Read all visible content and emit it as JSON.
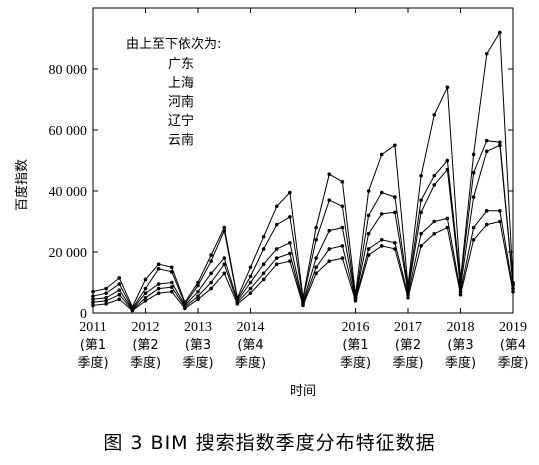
{
  "chart_data": {
    "type": "line",
    "ylabel": "百度指数",
    "xlabel": "时间",
    "ylim": [
      0,
      100000
    ],
    "yticks": [
      0,
      20000,
      40000,
      60000,
      80000
    ],
    "ytick_labels": [
      "0",
      "20 000",
      "40 000",
      "60 000",
      "80 000"
    ],
    "xlim": [
      2011,
      2019
    ],
    "xticks": [
      2011,
      2012,
      2013,
      2014,
      2016,
      2017,
      2018,
      2019
    ],
    "xtick_labels": [
      [
        "2011",
        "(第1",
        "季度)"
      ],
      [
        "2012",
        "(第2",
        "季度)"
      ],
      [
        "2013",
        "(第3",
        "季度)"
      ],
      [
        "2014",
        "(第4",
        "季度)"
      ],
      [
        "2016",
        "(第1",
        "季度)"
      ],
      [
        "2017",
        "(第2",
        "季度)"
      ],
      [
        "2018",
        "(第3",
        "季度)"
      ],
      [
        "2019",
        "(第4",
        "季度)"
      ]
    ],
    "legend_title": "由上至下依次为:",
    "legend_placement": "top-left",
    "x": [
      2011.0,
      2011.25,
      2011.5,
      2011.75,
      2012.0,
      2012.25,
      2012.5,
      2012.75,
      2013.0,
      2013.25,
      2013.5,
      2013.75,
      2014.0,
      2014.25,
      2014.5,
      2014.75,
      2015.0,
      2015.25,
      2015.5,
      2015.75,
      2016.0,
      2016.25,
      2016.5,
      2016.75,
      2017.0,
      2017.25,
      2017.5,
      2017.75,
      2018.0,
      2018.25,
      2018.5,
      2018.75,
      2019.0
    ],
    "series": [
      {
        "name": "广东",
        "values": [
          7000,
          8000,
          11500,
          2000,
          11000,
          16000,
          15000,
          3500,
          10000,
          19000,
          28000,
          5000,
          15000,
          25000,
          35000,
          39500,
          5000,
          28000,
          45500,
          43000,
          6000,
          40000,
          52000,
          55000,
          9000,
          45000,
          65000,
          74000,
          11000,
          52000,
          85000,
          92000,
          10000
        ]
      },
      {
        "name": "上海",
        "values": [
          5500,
          6500,
          9500,
          1500,
          8000,
          14500,
          13500,
          3000,
          9000,
          17000,
          27000,
          4500,
          12000,
          21000,
          29000,
          31500,
          4500,
          24000,
          37000,
          35000,
          5000,
          32000,
          39500,
          38000,
          8000,
          37000,
          45000,
          50000,
          10000,
          46000,
          56500,
          56000,
          9500
        ]
      },
      {
        "name": "河南",
        "values": [
          4500,
          5000,
          7500,
          1200,
          6500,
          9500,
          10000,
          2500,
          7000,
          13000,
          18000,
          4000,
          10000,
          16000,
          21000,
          23000,
          3500,
          18000,
          27000,
          28000,
          5000,
          26000,
          32500,
          33000,
          7000,
          33000,
          42000,
          47000,
          8500,
          38000,
          53000,
          55000,
          9000
        ]
      },
      {
        "name": "辽宁",
        "values": [
          3500,
          4000,
          6000,
          1000,
          5000,
          8000,
          8500,
          2000,
          5500,
          10000,
          16000,
          3500,
          8000,
          13000,
          18000,
          19500,
          3000,
          15000,
          21000,
          22000,
          4500,
          21000,
          24000,
          23000,
          6000,
          26000,
          30000,
          31000,
          7000,
          28000,
          33500,
          33500,
          8000
        ]
      },
      {
        "name": "云南",
        "values": [
          2500,
          3000,
          4500,
          800,
          4000,
          6500,
          7000,
          1500,
          4500,
          8000,
          13000,
          3000,
          6500,
          11000,
          16000,
          17000,
          2500,
          13000,
          17000,
          18000,
          4000,
          19000,
          22000,
          21000,
          5000,
          22000,
          26000,
          28000,
          6000,
          24000,
          29000,
          30000,
          7000
        ]
      }
    ]
  },
  "caption": "图 3  BIM 搜索指数季度分布特征数据",
  "colors": {
    "line": "#000000",
    "axis": "#000000"
  }
}
